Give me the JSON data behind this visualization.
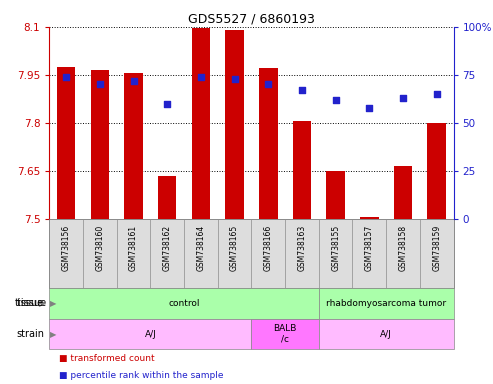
{
  "title": "GDS5527 / 6860193",
  "samples": [
    "GSM738156",
    "GSM738160",
    "GSM738161",
    "GSM738162",
    "GSM738164",
    "GSM738165",
    "GSM738166",
    "GSM738163",
    "GSM738155",
    "GSM738157",
    "GSM738158",
    "GSM738159"
  ],
  "bar_values": [
    7.975,
    7.965,
    7.955,
    7.635,
    8.095,
    8.09,
    7.97,
    7.805,
    7.65,
    7.505,
    7.665,
    7.8
  ],
  "bar_base": 7.5,
  "dot_values": [
    74,
    70,
    72,
    60,
    74,
    73,
    70,
    67,
    62,
    58,
    63,
    65
  ],
  "ylim_left": [
    7.5,
    8.1
  ],
  "ylim_right": [
    0,
    100
  ],
  "yticks_left": [
    7.5,
    7.65,
    7.8,
    7.95,
    8.1
  ],
  "yticks_right": [
    0,
    25,
    50,
    75,
    100
  ],
  "bar_color": "#cc0000",
  "dot_color": "#2222cc",
  "left_axis_color": "#cc0000",
  "right_axis_color": "#2222cc",
  "tissue_rects": [
    {
      "label": "control",
      "xstart": 0,
      "xend": 7,
      "color": "#aaffaa"
    },
    {
      "label": "rhabdomyosarcoma tumor",
      "xstart": 8,
      "xend": 11,
      "color": "#aaffaa"
    }
  ],
  "strain_rects": [
    {
      "label": "A/J",
      "xstart": 0,
      "xend": 5,
      "color": "#ffbbff"
    },
    {
      "label": "BALB\n/c",
      "xstart": 6,
      "xend": 7,
      "color": "#ff77ff"
    },
    {
      "label": "A/J",
      "xstart": 8,
      "xend": 11,
      "color": "#ffbbff"
    }
  ],
  "legend_items": [
    {
      "label": "transformed count",
      "color": "#cc0000"
    },
    {
      "label": "percentile rank within the sample",
      "color": "#2222cc"
    }
  ]
}
